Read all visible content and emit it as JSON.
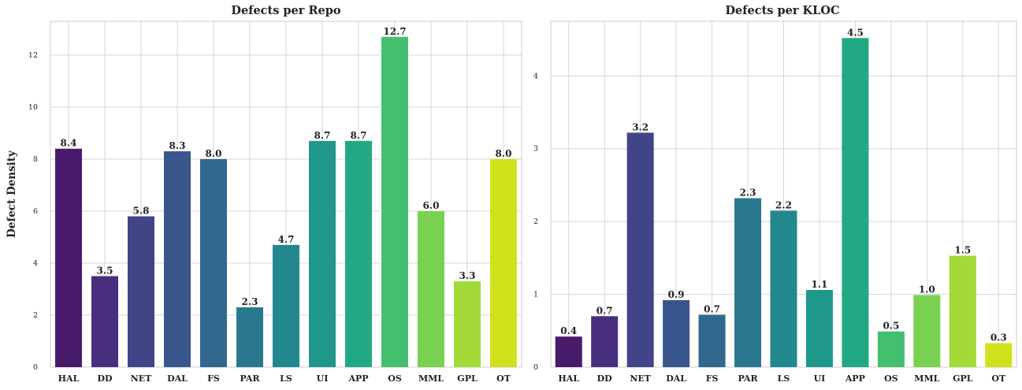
{
  "chart_data": [
    {
      "type": "bar",
      "title": "Defects per Repo",
      "ylabel": "Defect Density",
      "xlabel": "",
      "ylim": [
        0,
        13.3
      ],
      "yticks": [
        0,
        2,
        4,
        6,
        8,
        10,
        12
      ],
      "grid": true,
      "categories": [
        "HAL",
        "DD",
        "NET",
        "DAL",
        "FS",
        "PAR",
        "LS",
        "UI",
        "APP",
        "OS",
        "MML",
        "GPL",
        "OT"
      ],
      "values": [
        8.4,
        3.5,
        5.8,
        8.3,
        8.0,
        2.3,
        4.7,
        8.7,
        8.7,
        12.7,
        6.0,
        3.3,
        8.0
      ],
      "value_labels": [
        "8.4",
        "3.5",
        "5.8",
        "8.3",
        "8.0",
        "2.3",
        "4.7",
        "8.7",
        "8.7",
        "12.7",
        "6.0",
        "3.3",
        "8.0"
      ],
      "colors": [
        "#481a6c",
        "#472f7d",
        "#414487",
        "#39568c",
        "#31688e",
        "#2a788e",
        "#23888e",
        "#1f988b",
        "#22a884",
        "#44bf70",
        "#7ad151",
        "#a2da37",
        "#d0e11c"
      ]
    },
    {
      "type": "bar",
      "title": "Defects per KLOC",
      "ylabel": "",
      "xlabel": "",
      "ylim": [
        0,
        4.75
      ],
      "yticks": [
        0,
        1,
        2,
        3,
        4
      ],
      "grid": true,
      "categories": [
        "HAL",
        "DD",
        "NET",
        "DAL",
        "FS",
        "PAR",
        "LS",
        "UI",
        "APP",
        "OS",
        "MML",
        "GPL",
        "OT"
      ],
      "values": [
        0.42,
        0.7,
        3.22,
        0.92,
        0.72,
        2.32,
        2.15,
        1.06,
        4.52,
        0.49,
        0.99,
        1.53,
        0.33
      ],
      "value_labels": [
        "0.4",
        "0.7",
        "3.2",
        "0.9",
        "0.7",
        "2.3",
        "2.2",
        "1.1",
        "4.5",
        "0.5",
        "1.0",
        "1.5",
        "0.3"
      ],
      "colors": [
        "#481a6c",
        "#472f7d",
        "#414487",
        "#39568c",
        "#31688e",
        "#2a788e",
        "#23888e",
        "#1f988b",
        "#22a884",
        "#44bf70",
        "#7ad151",
        "#a2da37",
        "#d0e11c"
      ]
    }
  ]
}
